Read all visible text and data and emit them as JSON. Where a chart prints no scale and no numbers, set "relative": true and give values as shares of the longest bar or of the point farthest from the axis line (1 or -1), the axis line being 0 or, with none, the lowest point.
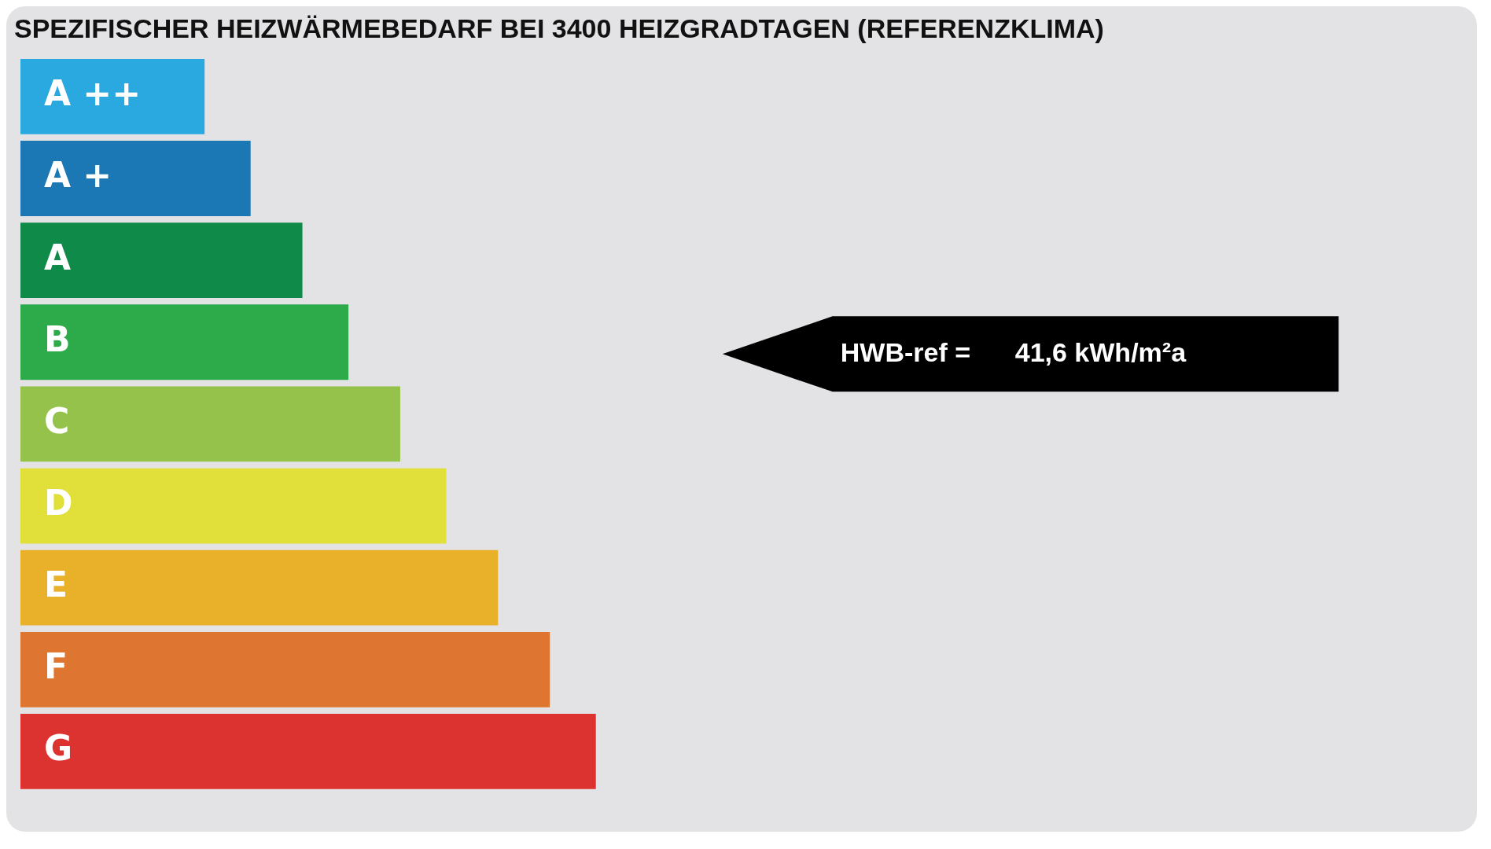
{
  "chart_data": {
    "type": "bar",
    "orientation": "horizontal",
    "relative": true,
    "title": "SPEZIFISCHER HEIZWÄRMEBEDARF BEI 3400 HEIZGRADTAGEN (REFERENZKLIMA)",
    "categories": [
      "A ++",
      "A +",
      "A",
      "B",
      "C",
      "D",
      "E",
      "F",
      "G"
    ],
    "values": [
      0.32,
      0.4,
      0.49,
      0.57,
      0.66,
      0.74,
      0.83,
      0.92,
      1
    ],
    "colors": [
      "#2aa8e0",
      "#1b78b4",
      "#0f8a48",
      "#2daa4a",
      "#94c24a",
      "#e1df3a",
      "#e9b02a",
      "#de7530",
      "#dc3330"
    ],
    "annotations": [
      "HWB-ref =      41,6 kWh/m²a"
    ],
    "legend": false
  }
}
